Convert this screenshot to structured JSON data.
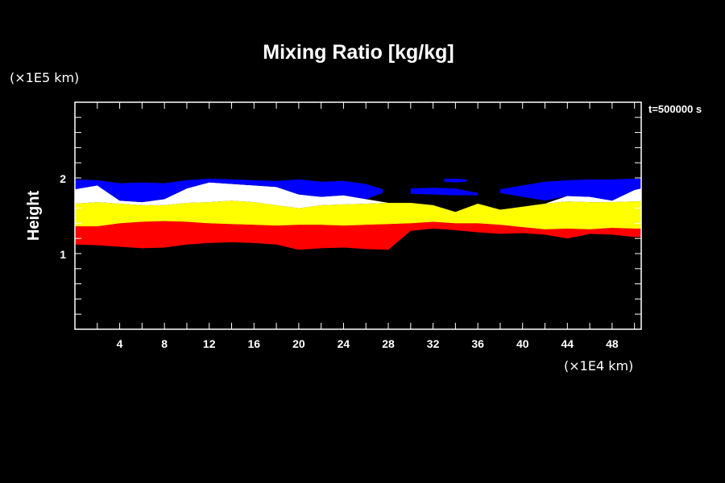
{
  "chart_data": {
    "type": "area",
    "title": "Mixing Ratio [kg/kg]",
    "xlabel": "(×1E4 km)",
    "ylabel": "Height",
    "yunit": "(×1E5 km)",
    "annotation": "t=500000 s",
    "xlim": [
      0,
      50.6
    ],
    "ylim": [
      0,
      3
    ],
    "x_ticks": [
      4,
      8,
      12,
      16,
      20,
      24,
      28,
      32,
      36,
      40,
      44,
      48
    ],
    "x_minor_step": 2,
    "y_ticks": [
      1,
      2
    ],
    "y_minor_step": 0.2,
    "colors": {
      "background": "#000000",
      "axis": "#ffffff",
      "red": "#ff0000",
      "yellow": "#ffff00",
      "white": "#ffffff",
      "blue": "#0000ff"
    },
    "x": [
      0,
      2,
      4,
      6,
      8,
      10,
      12,
      14,
      16,
      18,
      20,
      22,
      24,
      26,
      28,
      30,
      32,
      34,
      36,
      38,
      40,
      42,
      44,
      46,
      48,
      50,
      50.6
    ],
    "layers": [
      {
        "name": "red",
        "color": "#ff0000",
        "bottom": [
          1.12,
          1.11,
          1.09,
          1.07,
          1.08,
          1.12,
          1.14,
          1.15,
          1.14,
          1.12,
          1.05,
          1.07,
          1.08,
          1.06,
          1.05,
          1.3,
          1.33,
          1.31,
          1.28,
          1.26,
          1.27,
          1.25,
          1.2,
          1.26,
          1.25,
          1.22,
          1.22
        ],
        "top": [
          1.36,
          1.36,
          1.4,
          1.42,
          1.43,
          1.42,
          1.4,
          1.39,
          1.38,
          1.37,
          1.38,
          1.38,
          1.37,
          1.38,
          1.39,
          1.4,
          1.42,
          1.4,
          1.4,
          1.38,
          1.35,
          1.32,
          1.33,
          1.32,
          1.34,
          1.33,
          1.33
        ]
      },
      {
        "name": "yellow",
        "color": "#ffff00",
        "bottom": [
          1.36,
          1.36,
          1.4,
          1.42,
          1.43,
          1.42,
          1.4,
          1.39,
          1.38,
          1.37,
          1.38,
          1.38,
          1.37,
          1.38,
          1.39,
          1.4,
          1.42,
          1.4,
          1.4,
          1.38,
          1.35,
          1.32,
          1.33,
          1.32,
          1.34,
          1.33,
          1.33
        ],
        "top": [
          1.66,
          1.68,
          1.66,
          1.64,
          1.64,
          1.67,
          1.68,
          1.7,
          1.68,
          1.64,
          1.6,
          1.64,
          1.65,
          1.66,
          1.67,
          1.67,
          1.64,
          1.55,
          1.66,
          1.58,
          1.62,
          1.66,
          1.69,
          1.68,
          1.68,
          1.69,
          1.69
        ]
      },
      {
        "name": "white",
        "color": "#ffffff",
        "bottom": [
          1.66,
          1.68,
          1.66,
          1.64,
          1.64,
          1.67,
          1.68,
          1.7,
          1.68,
          1.64,
          1.6,
          1.64,
          1.65,
          1.66,
          1.67,
          1.67,
          1.64,
          1.55,
          1.66,
          1.58,
          1.62,
          1.66,
          1.69,
          1.68,
          1.68,
          1.69,
          1.69
        ],
        "top": [
          1.85,
          1.9,
          1.7,
          1.68,
          1.72,
          1.86,
          1.94,
          1.92,
          1.9,
          1.88,
          1.78,
          1.75,
          1.77,
          1.72,
          1.67,
          1.67,
          1.64,
          1.55,
          1.66,
          1.58,
          1.62,
          1.66,
          1.76,
          1.75,
          1.7,
          1.84,
          1.86
        ]
      }
    ],
    "blue_regions": [
      {
        "x": [
          0,
          2,
          4,
          6,
          8,
          10,
          12,
          14,
          16,
          18,
          20,
          22,
          24,
          26,
          27.5
        ],
        "bottom": [
          1.85,
          1.9,
          1.7,
          1.68,
          1.72,
          1.86,
          1.94,
          1.92,
          1.9,
          1.88,
          1.78,
          1.75,
          1.77,
          1.72,
          1.8
        ],
        "top": [
          1.98,
          1.97,
          1.93,
          1.94,
          1.93,
          1.97,
          1.99,
          1.98,
          1.97,
          1.96,
          1.98,
          1.95,
          1.96,
          1.92,
          1.85
        ]
      },
      {
        "x": [
          30,
          32,
          34,
          36
        ],
        "bottom": [
          1.79,
          1.78,
          1.77,
          1.77
        ],
        "top": [
          1.86,
          1.87,
          1.86,
          1.8
        ]
      },
      {
        "x": [
          33,
          34,
          35
        ],
        "bottom": [
          1.95,
          1.94,
          1.95
        ],
        "top": [
          1.99,
          1.99,
          1.98
        ]
      },
      {
        "x": [
          38,
          40,
          42,
          44,
          46,
          48,
          50,
          50.6
        ],
        "bottom": [
          1.8,
          1.75,
          1.7,
          1.76,
          1.75,
          1.7,
          1.84,
          1.86
        ],
        "top": [
          1.85,
          1.9,
          1.95,
          1.97,
          1.98,
          1.98,
          1.99,
          1.99
        ]
      }
    ]
  }
}
